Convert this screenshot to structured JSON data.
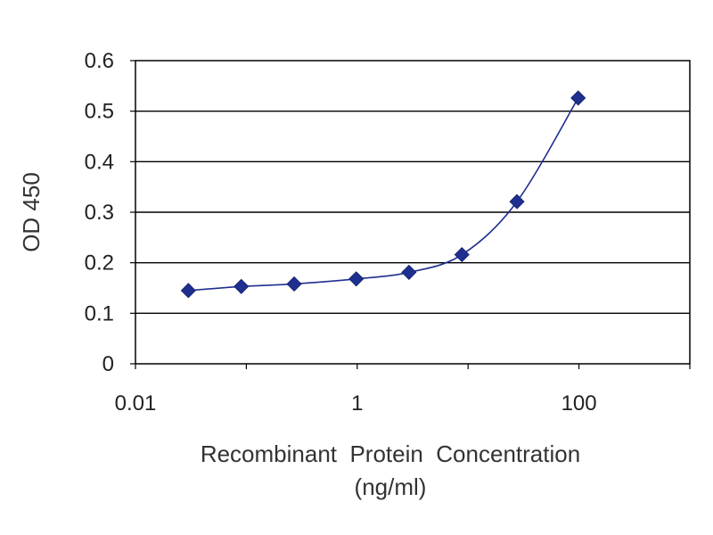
{
  "chart_data": {
    "type": "scatter",
    "xscale": "log",
    "x": [
      0.03,
      0.09,
      0.27,
      0.98,
      2.93,
      8.8,
      27.6,
      98.4
    ],
    "y": [
      0.145,
      0.153,
      0.158,
      0.168,
      0.181,
      0.216,
      0.321,
      0.526
    ],
    "series": [
      {
        "values": [
          0.145,
          0.153,
          0.158,
          0.168,
          0.181,
          0.216,
          0.321,
          0.526
        ]
      }
    ],
    "xlim": [
      0.01,
      1000
    ],
    "ylim": [
      0,
      0.6
    ],
    "xticks": [
      "0.01",
      "1",
      "100"
    ],
    "yticks": [
      "0",
      "0.1",
      "0.2",
      "0.3",
      "0.4",
      "0.5",
      "0.6"
    ],
    "xlabel": "Recombinant  Protein  Concentration",
    "xlabel_unit": "(ng/ml)",
    "ylabel": "OD 450",
    "grid": "horizontal",
    "legend": "none",
    "colors": {
      "series": "#1f2f8f",
      "grid": "#000000",
      "frame": "#000000"
    }
  }
}
